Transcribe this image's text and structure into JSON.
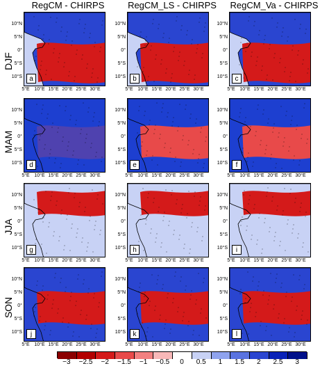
{
  "columns": [
    "RegCM - CHIRPS",
    "RegCM_LS - CHIRPS",
    "RegCM_Va - CHIRPS"
  ],
  "rows": [
    "DJF",
    "MAM",
    "JJA",
    "SON"
  ],
  "panel_labels": [
    "a",
    "b",
    "c",
    "d",
    "e",
    "f",
    "g",
    "h",
    "i",
    "j",
    "k",
    "l"
  ],
  "y_ticks": [
    "10°N",
    "5°N",
    "0°",
    "5°S",
    "10°S"
  ],
  "x_ticks": [
    "5°E",
    "10°E",
    "15°E",
    "20°E",
    "25°E",
    "30°E"
  ],
  "colorbar": {
    "ticks": [
      "−3",
      "−2.5",
      "−2",
      "−1.5",
      "−1",
      "−0.5",
      "0",
      "0.5",
      "1",
      "1.5",
      "2",
      "2.5",
      "3"
    ],
    "colors": [
      "#8b0000",
      "#b30000",
      "#d41a1a",
      "#e84a4a",
      "#f28080",
      "#f8b8b8",
      "#ffffff",
      "#c8d2f5",
      "#8fa3ee",
      "#5a73e0",
      "#2a45d0",
      "#0a22b8",
      "#00108a"
    ]
  },
  "colors": {
    "ocean_dry": "#d41a1a",
    "land_wet": "#1d3fd0",
    "neutral": "#e6ebfa"
  }
}
